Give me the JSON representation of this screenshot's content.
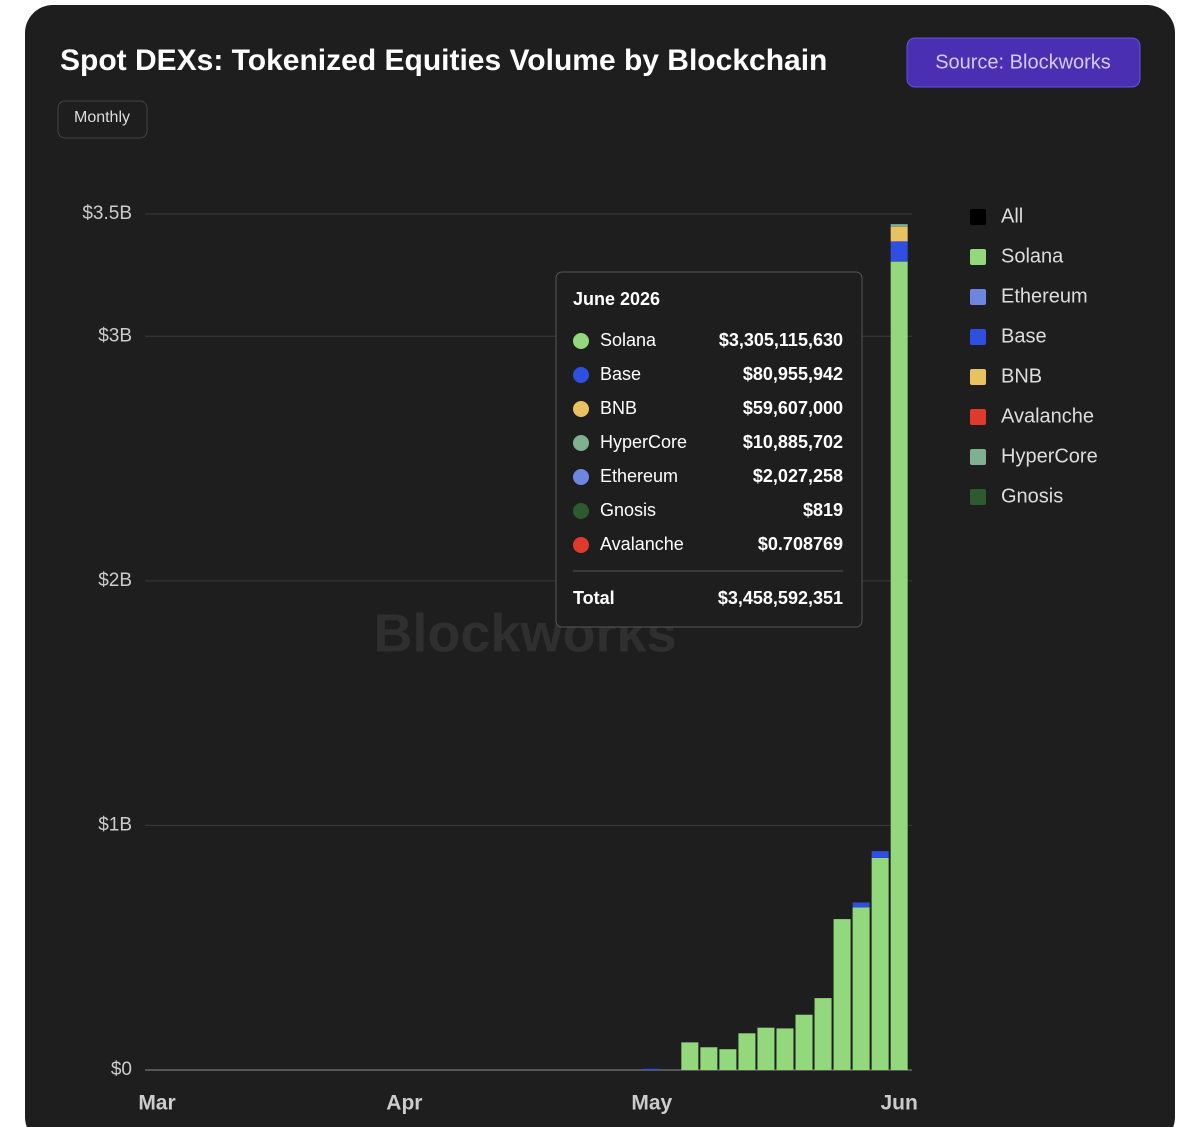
{
  "chart_data": {
    "type": "stacked_bar",
    "title": "Spot DEXs: Tokenized Equities Volume by Blockchain",
    "source_button": "Source: Blockworks",
    "interval_button": "Monthly",
    "watermark": "Blockworks",
    "categories": [
      "Mar",
      null,
      null,
      null,
      null,
      null,
      null,
      null,
      null,
      null,
      null,
      null,
      null,
      "Apr",
      null,
      null,
      null,
      null,
      null,
      null,
      null,
      null,
      null,
      null,
      null,
      null,
      "May",
      null,
      null,
      null,
      null,
      null,
      null,
      null,
      null,
      null,
      null,
      null,
      null,
      "Jun"
    ],
    "ylim": [
      0,
      3500000000
    ],
    "yticks": [
      {
        "value": 0,
        "label": "$0"
      },
      {
        "value": 1000000000,
        "label": "$1B"
      },
      {
        "value": 2000000000,
        "label": "$2B"
      },
      {
        "value": 3000000000,
        "label": "$3B"
      },
      {
        "value": 3500000000,
        "label": "$3.5B"
      }
    ],
    "grid": true,
    "legend_all": {
      "name": "All",
      "color": "#000000"
    },
    "series": [
      {
        "name": "Solana",
        "color": "#93d87c",
        "values": [
          0,
          0,
          0,
          0,
          0,
          0,
          0,
          0,
          0,
          0,
          0,
          0,
          0,
          0,
          0,
          0,
          0,
          0,
          0,
          0,
          0,
          0,
          0,
          0,
          0,
          0,
          0,
          0,
          113000000,
          93000000,
          85000000,
          150000000,
          173000000,
          170000000,
          226000000,
          294000000,
          617000000,
          665000000,
          867000000,
          3305115630
        ]
      },
      {
        "name": "Ethereum",
        "color": "#6f86e0",
        "values": [
          0,
          0,
          0,
          0,
          0,
          0,
          0,
          0,
          0,
          0,
          0,
          0,
          0,
          0,
          0,
          0,
          0,
          0,
          0,
          0,
          0,
          0,
          0,
          0,
          0,
          0,
          0,
          0,
          0,
          0,
          0,
          0,
          0,
          0,
          0,
          0,
          0,
          0,
          0,
          2027258
        ]
      },
      {
        "name": "Base",
        "color": "#2e4fe0",
        "values": [
          0,
          0,
          0,
          0,
          0,
          0,
          0,
          0,
          0,
          0,
          0,
          0,
          0,
          0,
          0,
          0,
          0,
          0,
          0,
          0,
          0,
          0,
          0,
          0,
          0,
          0,
          5000000,
          0,
          0,
          0,
          0,
          0,
          0,
          0,
          0,
          0,
          0,
          20000000,
          28000000,
          80955942
        ]
      },
      {
        "name": "BNB",
        "color": "#e8c260",
        "values": [
          0,
          0,
          0,
          0,
          0,
          0,
          0,
          0,
          0,
          0,
          0,
          0,
          0,
          0,
          0,
          0,
          0,
          0,
          0,
          0,
          0,
          0,
          0,
          0,
          0,
          0,
          0,
          0,
          0,
          0,
          0,
          0,
          0,
          0,
          0,
          0,
          0,
          0,
          0,
          59607000
        ]
      },
      {
        "name": "Avalanche",
        "color": "#e03a2f",
        "values": [
          0,
          0,
          0,
          0,
          0,
          0,
          0,
          0,
          0,
          0,
          0,
          0,
          0,
          0,
          0,
          0,
          0,
          0,
          0,
          0,
          0,
          0,
          0,
          0,
          0,
          0,
          0,
          0,
          0,
          0,
          0,
          0,
          0,
          0,
          0,
          0,
          0,
          0,
          0,
          0.708769
        ]
      },
      {
        "name": "HyperCore",
        "color": "#7fb08f",
        "values": [
          0,
          0,
          0,
          0,
          0,
          0,
          0,
          0,
          0,
          0,
          0,
          0,
          0,
          0,
          0,
          0,
          0,
          0,
          0,
          0,
          0,
          0,
          0,
          0,
          0,
          0,
          0,
          0,
          0,
          0,
          0,
          0,
          0,
          0,
          0,
          0,
          0,
          0,
          0,
          10885702
        ]
      },
      {
        "name": "Gnosis",
        "color": "#2f5a2f",
        "values": [
          0,
          0,
          0,
          0,
          0,
          0,
          0,
          0,
          0,
          0,
          0,
          0,
          0,
          0,
          0,
          0,
          0,
          0,
          0,
          0,
          0,
          0,
          0,
          0,
          0,
          0,
          0,
          0,
          0,
          0,
          0,
          0,
          0,
          0,
          0,
          0,
          0,
          0,
          0,
          819
        ]
      }
    ],
    "tooltip": {
      "title": "June 2026",
      "rows": [
        {
          "name": "Solana",
          "value_label": "$3,305,115,630"
        },
        {
          "name": "Base",
          "value_label": "$80,955,942"
        },
        {
          "name": "BNB",
          "value_label": "$59,607,000"
        },
        {
          "name": "HyperCore",
          "value_label": "$10,885,702"
        },
        {
          "name": "Ethereum",
          "value_label": "$2,027,258"
        },
        {
          "name": "Gnosis",
          "value_label": "$819"
        },
        {
          "name": "Avalanche",
          "value_label": "$0.708769"
        }
      ],
      "total_name": "Total",
      "total_label": "$3,458,592,351"
    }
  }
}
